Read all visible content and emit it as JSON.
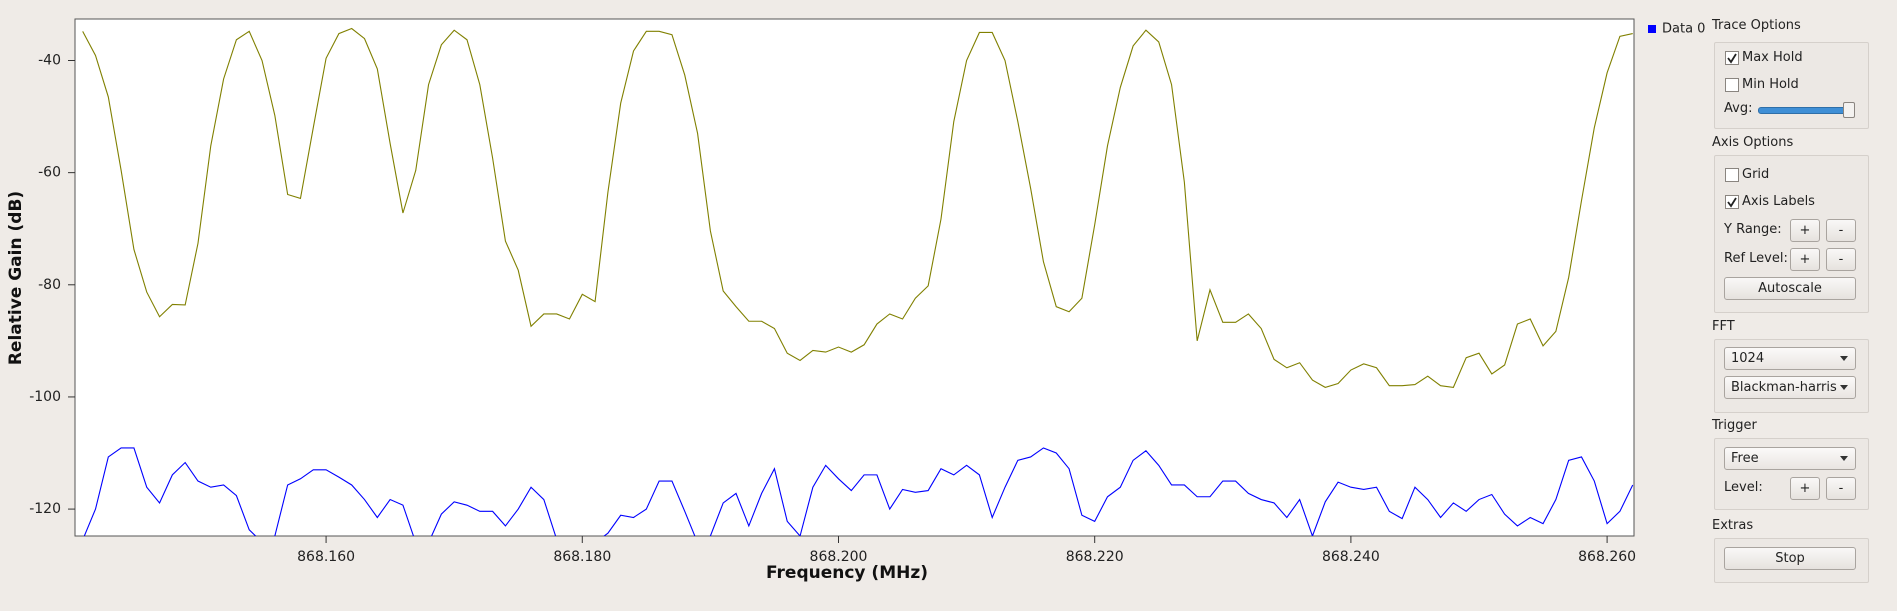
{
  "chart_data": {
    "type": "line",
    "xlabel": "Frequency (MHz)",
    "ylabel": "Relative Gain (dB)",
    "x": [
      868.141,
      868.142,
      868.143,
      868.144,
      868.145,
      868.146,
      868.147,
      868.148,
      868.149,
      868.15,
      868.151,
      868.152,
      868.153,
      868.154,
      868.155,
      868.156,
      868.157,
      868.158,
      868.159,
      868.16,
      868.161,
      868.162,
      868.163,
      868.164,
      868.165,
      868.166,
      868.167,
      868.168,
      868.169,
      868.17,
      868.171,
      868.172,
      868.173,
      868.174,
      868.175,
      868.176,
      868.177,
      868.178,
      868.179,
      868.18,
      868.181,
      868.182,
      868.183,
      868.184,
      868.185,
      868.186,
      868.187,
      868.188,
      868.189,
      868.19,
      868.191,
      868.192,
      868.193,
      868.194,
      868.195,
      868.196,
      868.197,
      868.198,
      868.199,
      868.2,
      868.201,
      868.202,
      868.203,
      868.204,
      868.205,
      868.206,
      868.207,
      868.208,
      868.209,
      868.21,
      868.211,
      868.212,
      868.213,
      868.214,
      868.215,
      868.216,
      868.217,
      868.218,
      868.219,
      868.22,
      868.221,
      868.222,
      868.223,
      868.224,
      868.225,
      868.226,
      868.227,
      868.228,
      868.229,
      868.23,
      868.231,
      868.232,
      868.233,
      868.234,
      868.235,
      868.236,
      868.237,
      868.238,
      868.239,
      868.24,
      868.241,
      868.242,
      868.243,
      868.244,
      868.245,
      868.246,
      868.247,
      868.248,
      868.249,
      868.25,
      868.251,
      868.252,
      868.253,
      868.254,
      868.255,
      868.256,
      868.257,
      868.258,
      868.259,
      868.26,
      868.261,
      868.262
    ],
    "series": [
      {
        "color": "#808000",
        "values": [
          -34.8,
          -39.1,
          -46.5,
          -59.6,
          -73.7,
          -81.3,
          -85.7,
          -83.5,
          -83.6,
          -72.6,
          -55.2,
          -43.3,
          -36.3,
          -34.8,
          -40,
          -49.8,
          -63.9,
          -64.6,
          -52,
          -39.6,
          -35.2,
          -34.3,
          -36.1,
          -41.5,
          -54.8,
          -67.2,
          -59.6,
          -44.3,
          -37.2,
          -34.6,
          -36.3,
          -44.3,
          -57.4,
          -72.2,
          -77.4,
          -87.4,
          -85.2,
          -85.2,
          -86.1,
          -81.7,
          -83,
          -63.5,
          -47.6,
          -38.3,
          -34.8,
          -34.8,
          -35.4,
          -42.6,
          -53,
          -70.4,
          -81.1,
          -83.9,
          -86.5,
          -86.5,
          -87.8,
          -92.2,
          -93.5,
          -91.7,
          -92,
          -91.1,
          -92,
          -90.7,
          -87,
          -85.2,
          -86.1,
          -82.4,
          -80.2,
          -68.3,
          -50.9,
          -40,
          -35,
          -35,
          -40,
          -50.9,
          -62.8,
          -75.9,
          -83.9,
          -84.8,
          -82.4,
          -69.3,
          -55.2,
          -44.8,
          -37.4,
          -34.6,
          -36.7,
          -44.3,
          -61.7,
          -90,
          -80.9,
          -86.7,
          -86.7,
          -85.2,
          -87.8,
          -93.3,
          -94.8,
          -93.9,
          -97,
          -98.3,
          -97.6,
          -95.2,
          -94.1,
          -94.8,
          -98,
          -98,
          -97.8,
          -96.3,
          -98,
          -98.3,
          -93,
          -92.2,
          -95.9,
          -94.3,
          -87,
          -86.1,
          -90.9,
          -88.3,
          -78.7,
          -65,
          -52,
          -42.2,
          -35.7,
          -35.2
        ]
      },
      {
        "name": "Data 0",
        "color": "#0000ff",
        "values": [
          -125.5,
          -120,
          -110.7,
          -109.1,
          -109.1,
          -116.1,
          -118.9,
          -113.9,
          -111.7,
          -115,
          -116.1,
          -115.7,
          -117.6,
          -123.7,
          -125.9,
          -124.8,
          -115.7,
          -114.6,
          -113,
          -113,
          -114.3,
          -115.7,
          -118.3,
          -121.5,
          -118.3,
          -119.3,
          -126,
          -126,
          -120.9,
          -118.7,
          -119.3,
          -120.4,
          -120.4,
          -123,
          -120,
          -116.1,
          -118.3,
          -125.4,
          -127,
          -127,
          -126,
          -124.3,
          -121.1,
          -121.5,
          -120,
          -115,
          -115,
          -120.4,
          -126,
          -124.8,
          -118.9,
          -117.2,
          -123,
          -117.2,
          -112.8,
          -122.2,
          -124.8,
          -116.1,
          -112.2,
          -114.6,
          -116.7,
          -113.9,
          -113.9,
          -120,
          -116.5,
          -117,
          -116.7,
          -112.8,
          -113.9,
          -112.2,
          -113.9,
          -121.5,
          -116.1,
          -111.3,
          -110.7,
          -109.1,
          -110,
          -112.8,
          -121.1,
          -122.2,
          -117.8,
          -116.1,
          -111.3,
          -109.6,
          -112.2,
          -115.7,
          -115.7,
          -117.8,
          -117.8,
          -115,
          -115,
          -117.2,
          -118.3,
          -118.9,
          -121.5,
          -118.3,
          -124.8,
          -118.7,
          -115.2,
          -116.1,
          -116.5,
          -116.1,
          -120.4,
          -121.7,
          -116.1,
          -118.3,
          -121.5,
          -118.9,
          -120.4,
          -118.3,
          -117.4,
          -120.9,
          -123,
          -121.5,
          -122.6,
          -118.3,
          -111.3,
          -110.7,
          -115,
          -122.6,
          -120.4,
          -115.7
        ]
      }
    ],
    "xlim": [
      868.1404,
      868.2621
    ],
    "ylim": [
      -124.8,
      -32.6
    ],
    "xticks": [
      {
        "value": 868.16,
        "label": "868.160"
      },
      {
        "value": 868.18,
        "label": "868.180"
      },
      {
        "value": 868.2,
        "label": "868.200"
      },
      {
        "value": 868.22,
        "label": "868.220"
      },
      {
        "value": 868.24,
        "label": "868.240"
      },
      {
        "value": 868.26,
        "label": "868.260"
      }
    ],
    "yticks": [
      -40,
      -60,
      -80,
      -100,
      -120
    ],
    "grid": false,
    "legend": "top-right"
  },
  "controls": {
    "trace_options": {
      "title": "Trace Options",
      "max_hold": {
        "label": "Max Hold",
        "checked": true
      },
      "min_hold": {
        "label": "Min Hold",
        "checked": false
      },
      "avg": "Avg:"
    },
    "axis_options": {
      "title": "Axis Options",
      "grid": {
        "label": "Grid",
        "checked": false
      },
      "axis_labels": {
        "label": "Axis Labels",
        "checked": true
      },
      "y_range": "Y Range:",
      "ref_level": "Ref Level:",
      "autoscale": "Autoscale"
    },
    "fft": {
      "title": "FFT",
      "size": "1024",
      "window": "Blackman-harris"
    },
    "trigger": {
      "title": "Trigger",
      "mode": "Free",
      "level": "Level:"
    },
    "extras": {
      "title": "Extras",
      "stop": "Stop"
    },
    "plus": "+",
    "minus": "-"
  }
}
